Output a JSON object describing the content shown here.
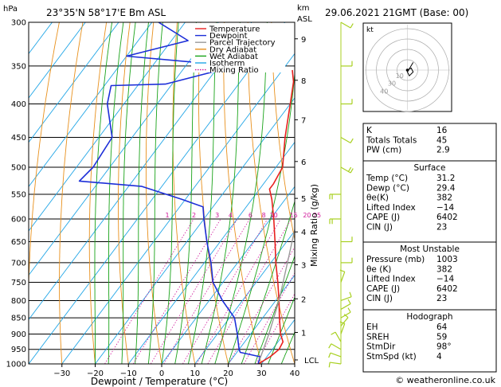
{
  "header": {
    "location": "23°35'N  58°17'E  Bm  ASL",
    "datetime": "29.06.2021  21GMT  (Base: 00)",
    "unit_hpa": "hPa",
    "unit_km": "km",
    "unit_asl": "ASL"
  },
  "footer": {
    "credit": "© weatheronline.co.uk"
  },
  "colors": {
    "temperature": "#e8201e",
    "dewpoint": "#1c2ed8",
    "parcel": "#9a9a9a",
    "dry_adiabat": "#e8901c",
    "wet_adiabat": "#19a319",
    "isotherm": "#22a6e6",
    "mixing_ratio": "#d0189a",
    "wind": "#a8d020"
  },
  "chart_data": {
    "type": "line",
    "title": "",
    "xlabel": "Dewpoint / Temperature (°C)",
    "ylabel_right": "Mixing Ratio (g/kg)",
    "xlim": [
      -40,
      40
    ],
    "ylim": [
      1000,
      300
    ],
    "pressure_ticks": [
      300,
      350,
      400,
      450,
      500,
      550,
      600,
      650,
      700,
      750,
      800,
      850,
      900,
      950,
      1000
    ],
    "temp_ticks": [
      -30,
      -20,
      -10,
      0,
      10,
      20,
      30,
      40
    ],
    "temp_tick_labels": [
      "−30",
      "−20",
      "−10",
      "0",
      "10",
      "20",
      "30",
      "40"
    ],
    "km_ticks": [
      {
        "label": "9",
        "p": 318
      },
      {
        "label": "8",
        "p": 368
      },
      {
        "label": "7",
        "p": 423
      },
      {
        "label": "6",
        "p": 490
      },
      {
        "label": "5",
        "p": 558
      },
      {
        "label": "4",
        "p": 628
      },
      {
        "label": "3",
        "p": 705
      },
      {
        "label": "2",
        "p": 795
      },
      {
        "label": "1",
        "p": 895
      },
      {
        "label": "LCL",
        "p": 986
      }
    ],
    "mixing_ratio_labels": [
      {
        "label": "1",
        "t": -31
      },
      {
        "label": "2",
        "t": -23
      },
      {
        "label": "3",
        "t": -16
      },
      {
        "label": "4",
        "t": -12
      },
      {
        "label": "6",
        "t": -6
      },
      {
        "label": "8",
        "t": -2
      },
      {
        "label": "10",
        "t": 1
      },
      {
        "label": "15",
        "t": 7
      },
      {
        "label": "20",
        "t": 11
      },
      {
        "label": "25",
        "t": 14
      }
    ],
    "legend": {
      "placement": "top-center",
      "entries": [
        "Temperature",
        "Dewpoint",
        "Parcel Trajectory",
        "Dry Adiabat",
        "Wet Adiabat",
        "Isotherm",
        "Mixing Ratio"
      ]
    },
    "series": [
      {
        "name": "Temperature",
        "points": [
          {
            "p": 1000,
            "t": 29
          },
          {
            "p": 975,
            "t": 31
          },
          {
            "p": 950,
            "t": 32
          },
          {
            "p": 925,
            "t": 31.5
          },
          {
            "p": 900,
            "t": 29
          },
          {
            "p": 850,
            "t": 25
          },
          {
            "p": 800,
            "t": 21
          },
          {
            "p": 750,
            "t": 16.5
          },
          {
            "p": 700,
            "t": 11.5
          },
          {
            "p": 650,
            "t": 6.5
          },
          {
            "p": 600,
            "t": 1
          },
          {
            "p": 560,
            "t": -4
          },
          {
            "p": 540,
            "t": -7
          },
          {
            "p": 530,
            "t": -7
          },
          {
            "p": 500,
            "t": -8
          },
          {
            "p": 450,
            "t": -14
          },
          {
            "p": 400,
            "t": -20
          },
          {
            "p": 370,
            "t": -24
          },
          {
            "p": 355,
            "t": -27
          }
        ]
      },
      {
        "name": "Dewpoint",
        "points": [
          {
            "p": 1000,
            "t": 29
          },
          {
            "p": 975,
            "t": 28
          },
          {
            "p": 960,
            "t": 21
          },
          {
            "p": 950,
            "t": 20
          },
          {
            "p": 925,
            "t": 18
          },
          {
            "p": 900,
            "t": 16
          },
          {
            "p": 850,
            "t": 11.5
          },
          {
            "p": 800,
            "t": 4
          },
          {
            "p": 750,
            "t": -3
          },
          {
            "p": 700,
            "t": -8
          },
          {
            "p": 650,
            "t": -14
          },
          {
            "p": 600,
            "t": -20
          },
          {
            "p": 575,
            "t": -23
          },
          {
            "p": 560,
            "t": -31
          },
          {
            "p": 535,
            "t": -46
          },
          {
            "p": 525,
            "t": -66
          },
          {
            "p": 500,
            "t": -65
          },
          {
            "p": 450,
            "t": -66
          },
          {
            "p": 400,
            "t": -75
          },
          {
            "p": 375,
            "t": -78
          },
          {
            "p": 373,
            "t": -62
          },
          {
            "p": 350,
            "t": -45
          },
          {
            "p": 338,
            "t": -80
          },
          {
            "p": 320,
            "t": -65
          },
          {
            "p": 300,
            "t": -78
          }
        ]
      },
      {
        "name": "Parcel Trajectory",
        "points": [
          {
            "p": 985,
            "t": 28.5
          },
          {
            "p": 900,
            "t": 25.5
          },
          {
            "p": 800,
            "t": 21
          },
          {
            "p": 700,
            "t": 15
          },
          {
            "p": 600,
            "t": 8
          },
          {
            "p": 500,
            "t": -1
          },
          {
            "p": 400,
            "t": -12
          },
          {
            "p": 370,
            "t": -16
          }
        ]
      }
    ],
    "wind_barbs": [
      {
        "p": 1000,
        "speed": 4,
        "dir": 98
      },
      {
        "p": 975,
        "speed": 5,
        "dir": 110
      },
      {
        "p": 950,
        "speed": 5,
        "dir": 120
      },
      {
        "p": 925,
        "speed": 6,
        "dir": 150
      },
      {
        "p": 900,
        "speed": 5,
        "dir": 200
      },
      {
        "p": 875,
        "speed": 5,
        "dir": 220
      },
      {
        "p": 850,
        "speed": 4,
        "dir": 240
      },
      {
        "p": 825,
        "speed": 5,
        "dir": 240
      },
      {
        "p": 800,
        "speed": 6,
        "dir": 250
      },
      {
        "p": 750,
        "speed": 5,
        "dir": 200
      },
      {
        "p": 700,
        "speed": 5,
        "dir": 270
      },
      {
        "p": 650,
        "speed": 5,
        "dir": 270
      },
      {
        "p": 600,
        "speed": 10,
        "dir": 90
      },
      {
        "p": 550,
        "speed": 12,
        "dir": 90
      },
      {
        "p": 500,
        "speed": 10,
        "dir": 300
      },
      {
        "p": 450,
        "speed": 5,
        "dir": 300
      },
      {
        "p": 400,
        "speed": 5,
        "dir": 270
      },
      {
        "p": 350,
        "speed": 5,
        "dir": 270
      },
      {
        "p": 300,
        "speed": 5,
        "dir": 300
      }
    ]
  },
  "hodograph": {
    "label": "kt",
    "ring_labels": [
      "10",
      "30",
      "40"
    ],
    "trace": [
      [
        0,
        0
      ],
      [
        2,
        -1
      ],
      [
        3,
        1
      ],
      [
        1,
        3
      ],
      [
        0,
        1
      ],
      [
        3,
        -4
      ]
    ]
  },
  "indices": [
    {
      "label": "K",
      "value": "16"
    },
    {
      "label": "Totals Totals",
      "value": "45"
    },
    {
      "label": "PW (cm)",
      "value": "2.9"
    }
  ],
  "surface": {
    "title": "Surface",
    "rows": [
      {
        "label": "Temp (°C)",
        "value": "31.2"
      },
      {
        "label": "Dewp (°C)",
        "value": "29.4"
      },
      {
        "label": "θe(K)",
        "value": "382"
      },
      {
        "label": "Lifted Index",
        "value": "−14"
      },
      {
        "label": "CAPE (J)",
        "value": "6402"
      },
      {
        "label": "CIN (J)",
        "value": "23"
      }
    ]
  },
  "most_unstable": {
    "title": "Most Unstable",
    "rows": [
      {
        "label": "Pressure (mb)",
        "value": "1003"
      },
      {
        "label": "θe (K)",
        "value": "382"
      },
      {
        "label": "Lifted Index",
        "value": "−14"
      },
      {
        "label": "CAPE (J)",
        "value": "6402"
      },
      {
        "label": "CIN (J)",
        "value": "23"
      }
    ]
  },
  "hodograph_table": {
    "title": "Hodograph",
    "rows": [
      {
        "label": "EH",
        "value": "64"
      },
      {
        "label": "SREH",
        "value": "59"
      },
      {
        "label": "StmDir",
        "value": "98°"
      },
      {
        "label": "StmSpd (kt)",
        "value": "4"
      }
    ]
  }
}
